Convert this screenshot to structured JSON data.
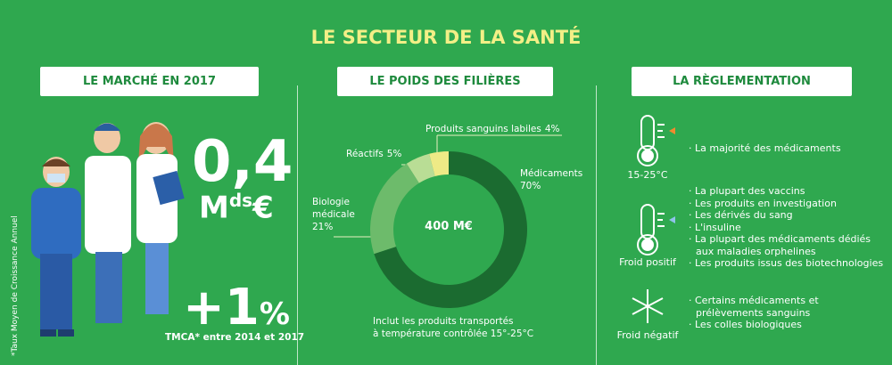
{
  "title": "LE SECTEUR DE LA SANTÉ",
  "market": {
    "heading": "LE MARCHÉ EN 2017",
    "amount": "0,4",
    "unit_main": "M",
    "unit_sup": "ds",
    "unit_currency": "€",
    "growth": "+1",
    "growth_unit": "%",
    "growth_caption": "TMCA* entre 2014 et 2017",
    "footnote": "*Taux Moyen de Croissance Annuel"
  },
  "donut": {
    "heading": "LE POIDS DES FILIÈRES",
    "center_label": "400 M€",
    "categories": [
      "Médicaments",
      "Biologie médicale",
      "Réactifs",
      "Produits sanguins labiles"
    ],
    "values": [
      70,
      21,
      5,
      4
    ],
    "value_labels": [
      "70%",
      "21%",
      "5%",
      "4%"
    ],
    "colors": [
      "#1b6b30",
      "#6dbb6b",
      "#b9dd95",
      "#eeea86"
    ],
    "note": [
      "Inclut les produits transportés",
      "à température contrôlée 15°-25°C"
    ]
  },
  "regulation": {
    "heading": "LA RÈGLEMENTATION",
    "rows": [
      {
        "label": "15-25°C",
        "items": [
          "La majorité des médicaments"
        ]
      },
      {
        "label": "Froid positif",
        "items": [
          "La plupart des vaccins",
          "Les produits en investigation",
          "Les dérivés du sang",
          "L'insuline",
          "La plupart des médicaments dédiés aux maladies orphelines",
          "Les produits issus des biotechnologies"
        ]
      },
      {
        "label": "Froid négatif",
        "items": [
          "Certains médicaments et prélèvements sanguins",
          "Les colles biologiques"
        ]
      }
    ]
  }
}
